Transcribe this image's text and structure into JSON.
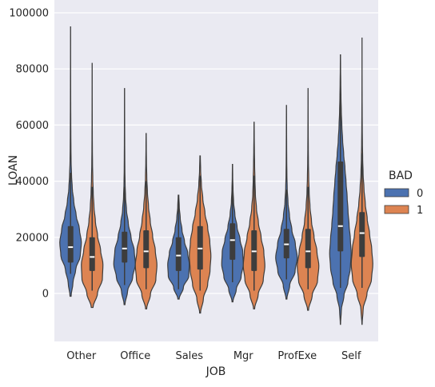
{
  "chart_data": {
    "type": "violin",
    "xlabel": "JOB",
    "ylabel": "LOAN",
    "ylim": [
      -16000,
      100000
    ],
    "yticks": [
      0,
      20000,
      40000,
      60000,
      80000,
      100000
    ],
    "grid": true,
    "legend_placement": "right",
    "categories": [
      "Other",
      "Office",
      "Sales",
      "Mgr",
      "ProfExe",
      "Self"
    ],
    "legend": {
      "title": "BAD",
      "entries": [
        "0",
        "1"
      ]
    },
    "series": [
      {
        "name": "0",
        "color": "#4c72b0",
        "values": [
          {
            "min": -1000,
            "q1": 11000,
            "median": 16500,
            "q3": 24000,
            "max": 95000,
            "lw": 7000,
            "uw": 43000,
            "widths": [
              0.05,
              0.22,
              0.48,
              0.9,
              1.0,
              0.82,
              0.52,
              0.3,
              0.16,
              0.09,
              0.05,
              0.035,
              0.025,
              0.02,
              0.015,
              0.012,
              0.01,
              0.008,
              0.006,
              0.005,
              0.004
            ]
          },
          {
            "min": -4000,
            "q1": 11000,
            "median": 16000,
            "q3": 22000,
            "max": 73000,
            "lw": 3000,
            "uw": 38000,
            "widths": [
              0.04,
              0.28,
              0.75,
              1.0,
              0.9,
              0.6,
              0.35,
              0.18,
              0.09,
              0.05,
              0.03,
              0.022,
              0.016,
              0.012,
              0.009,
              0.007,
              0.005
            ]
          },
          {
            "min": -2000,
            "q1": 8000,
            "median": 13500,
            "q3": 20000,
            "max": 35000,
            "lw": 1500,
            "uw": 33000,
            "widths": [
              0.06,
              0.45,
              0.95,
              1.0,
              0.85,
              0.55,
              0.32,
              0.16,
              0.07,
              0.03
            ]
          },
          {
            "min": -3000,
            "q1": 12000,
            "median": 19000,
            "q3": 25000,
            "max": 46000,
            "lw": 4000,
            "uw": 42000,
            "widths": [
              0.04,
              0.35,
              0.8,
              1.0,
              0.95,
              0.7,
              0.42,
              0.22,
              0.1,
              0.05,
              0.02,
              0.01
            ]
          },
          {
            "min": -2000,
            "q1": 12500,
            "median": 17500,
            "q3": 23000,
            "max": 67000,
            "lw": 5000,
            "uw": 37000,
            "widths": [
              0.04,
              0.3,
              0.8,
              1.0,
              0.82,
              0.5,
              0.28,
              0.14,
              0.07,
              0.04,
              0.025,
              0.018,
              0.012,
              0.008,
              0.005
            ]
          },
          {
            "min": -11000,
            "q1": 15000,
            "median": 24000,
            "q3": 47000,
            "max": 85000,
            "lw": 2000,
            "uw": 75000,
            "widths": [
              0.01,
              0.08,
              0.32,
              0.7,
              0.92,
              1.0,
              0.92,
              0.8,
              0.7,
              0.62,
              0.52,
              0.42,
              0.3,
              0.2,
              0.13,
              0.08,
              0.05,
              0.03,
              0.015,
              0.008
            ]
          }
        ]
      },
      {
        "name": "1",
        "color": "#dd8452",
        "values": [
          {
            "min": -5000,
            "q1": 8000,
            "median": 13000,
            "q3": 20000,
            "max": 82000,
            "lw": 1000,
            "uw": 38000,
            "widths": [
              0.08,
              0.5,
              0.95,
              1.0,
              0.78,
              0.5,
              0.3,
              0.17,
              0.1,
              0.06,
              0.035,
              0.022,
              0.015,
              0.01,
              0.008,
              0.006,
              0.005,
              0.004
            ]
          },
          {
            "min": -5500,
            "q1": 9000,
            "median": 15000,
            "q3": 22500,
            "max": 57000,
            "lw": 1500,
            "uw": 40000,
            "widths": [
              0.05,
              0.4,
              0.9,
              1.0,
              0.85,
              0.6,
              0.38,
              0.22,
              0.12,
              0.06,
              0.03,
              0.015,
              0.008
            ]
          },
          {
            "min": -7000,
            "q1": 8500,
            "median": 16000,
            "q3": 24000,
            "max": 49000,
            "lw": 1000,
            "uw": 42000,
            "widths": [
              0.04,
              0.3,
              0.7,
              0.92,
              1.0,
              0.9,
              0.7,
              0.45,
              0.25,
              0.12,
              0.05,
              0.02
            ]
          },
          {
            "min": -5500,
            "q1": 8000,
            "median": 15000,
            "q3": 22500,
            "max": 61000,
            "lw": 1000,
            "uw": 42000,
            "widths": [
              0.05,
              0.38,
              0.85,
              1.0,
              0.9,
              0.65,
              0.4,
              0.22,
              0.12,
              0.08,
              0.05,
              0.03,
              0.015,
              0.008
            ]
          },
          {
            "min": -6000,
            "q1": 9000,
            "median": 15000,
            "q3": 23000,
            "max": 73000,
            "lw": 1500,
            "uw": 38000,
            "widths": [
              0.04,
              0.38,
              0.88,
              1.0,
              0.82,
              0.55,
              0.32,
              0.18,
              0.1,
              0.06,
              0.035,
              0.022,
              0.014,
              0.009,
              0.006,
              0.004
            ]
          },
          {
            "min": -11000,
            "q1": 13000,
            "median": 21500,
            "q3": 29000,
            "max": 91000,
            "lw": 2000,
            "uw": 50000,
            "widths": [
              0.01,
              0.1,
              0.45,
              0.88,
              1.0,
              0.9,
              0.7,
              0.48,
              0.3,
              0.18,
              0.1,
              0.06,
              0.035,
              0.022,
              0.014,
              0.009,
              0.006,
              0.004,
              0.003,
              0.002
            ]
          }
        ]
      }
    ]
  }
}
